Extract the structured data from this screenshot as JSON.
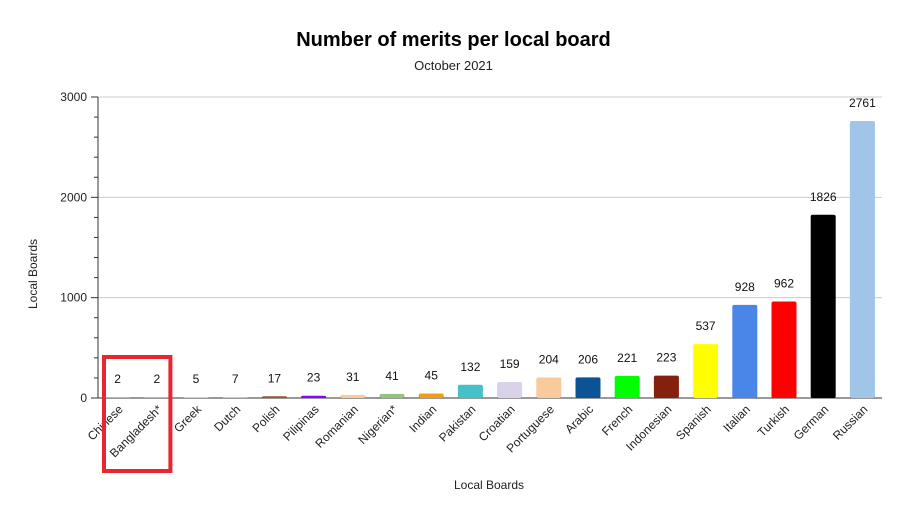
{
  "chart_data": {
    "type": "bar",
    "title": "Number of merits per local board",
    "subtitle": "October 2021",
    "xlabel": "Local Boards",
    "ylabel": "Local Boards",
    "ylim": [
      0,
      3000
    ],
    "yticks": [
      0,
      1000,
      2000,
      3000
    ],
    "grid": true,
    "categories": [
      "Chinese",
      "Bangladesh*",
      "Greek",
      "Dutch",
      "Polish",
      "Pilipinas",
      "Romanian",
      "Nigerian*",
      "Indian",
      "Pakistan",
      "Croatian",
      "Portuguese",
      "Arabic",
      "French",
      "Indonesian",
      "Spanish",
      "Italian",
      "Turkish",
      "German",
      "Russian"
    ],
    "values": [
      2,
      2,
      5,
      7,
      17,
      23,
      31,
      41,
      45,
      132,
      159,
      204,
      206,
      221,
      223,
      537,
      928,
      962,
      1826,
      2761
    ],
    "colors": [
      "#e06666",
      "#e06666",
      "#b7b7b7",
      "#b7b7b7",
      "#a0522d",
      "#8b00ff",
      "#f9cb9c",
      "#93c47d",
      "#f39c12",
      "#45c1c9",
      "#d9d2e9",
      "#f9cb9c",
      "#0b5394",
      "#00ff00",
      "#85200c",
      "#ffff00",
      "#4a86e8",
      "#ff0000",
      "#000000",
      "#9fc5e8"
    ],
    "highlight": {
      "categories": [
        "Chinese",
        "Bangladesh*"
      ],
      "color": "#e8262f"
    }
  }
}
